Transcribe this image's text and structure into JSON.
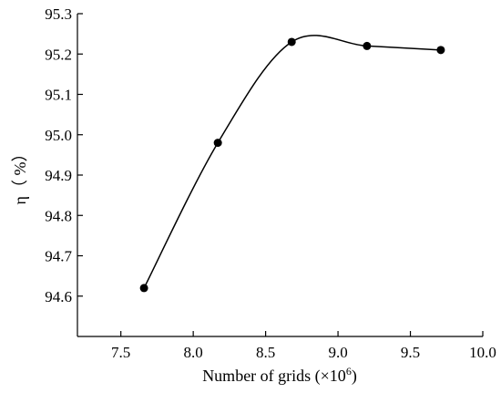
{
  "chart_data": {
    "type": "line",
    "title": "",
    "xlabel": "Number of grids (×10",
    "xlabel_sup": "6",
    "xlabel_close": ")",
    "ylabel": "η（ %）",
    "xlim": [
      7.2,
      10.0
    ],
    "ylim": [
      94.5,
      95.3
    ],
    "x_ticks": [
      "7.5",
      "8.0",
      "8.5",
      "9.0",
      "9.5",
      "10.0"
    ],
    "y_ticks": [
      "94.6",
      "94.7",
      "94.8",
      "94.9",
      "95.0",
      "95.1",
      "95.2",
      "95.3"
    ],
    "smooth": true,
    "grid": false,
    "colors": {
      "line": "#000000",
      "marker": "#000000"
    },
    "series": [
      {
        "x": [
          7.66,
          8.17,
          8.68,
          9.2,
          9.71
        ],
        "y": [
          94.62,
          94.98,
          95.23,
          95.22,
          95.21
        ]
      }
    ]
  }
}
